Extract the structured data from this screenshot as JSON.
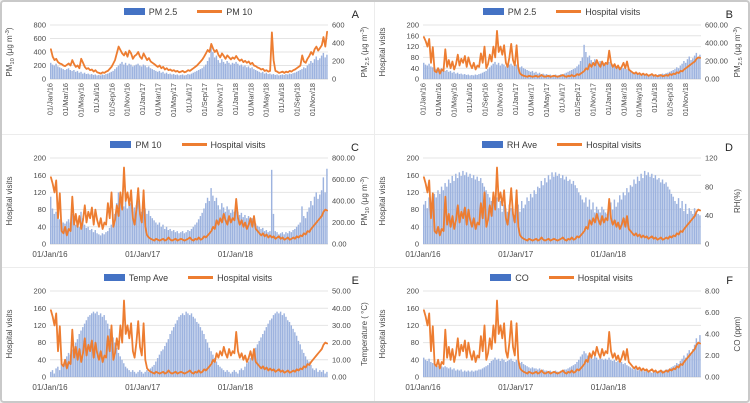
{
  "figure": {
    "background": "#ffffff",
    "border_color": "#C9C9C9",
    "divider_color": "#ECECEC"
  },
  "chart_data": {
    "type": "combo",
    "description": "Six combo bar+line time-series panels A-F, daily data 01/Jan/16 to Dec/18 (values stored at weekly resolution, 156 points)",
    "x_axis": {
      "start": "01/Jan/16",
      "end": "Dec/18",
      "points": 156,
      "monthly_labels": [
        "01/Jan/16",
        "01/Mar/16",
        "01/May/16",
        "01/Jul/16",
        "01/Sep/16",
        "01/Nov/16",
        "01/Jan/17",
        "01/Mar/17",
        "01/May/17",
        "01/Jul/17",
        "01/Sep/17",
        "01/Nov/17",
        "01/Jan/18",
        "01/Mar/18",
        "01/May/18",
        "01/Jul/18",
        "01/Sep/18",
        "01/Nov/18"
      ],
      "yearly_labels": [
        "01/Jan/16",
        "01/Jan/17",
        "01/Jan/18"
      ]
    },
    "colors": {
      "bar_fill": "#9DB3DF",
      "bar_legend": "#4472C4",
      "line": "#ED7D31",
      "grid": "#E4E4E4",
      "axis_line": "#D6D6D6",
      "axis_text": "#4A4A4A"
    },
    "series_pool": {
      "hospital_visits": [
        155,
        140,
        120,
        148,
        60,
        118,
        30,
        25,
        40,
        20,
        35,
        30,
        110,
        45,
        70,
        40,
        65,
        35,
        55,
        90,
        50,
        75,
        60,
        85,
        45,
        80,
        55,
        40,
        60,
        35,
        50,
        45,
        95,
        60,
        120,
        40,
        55,
        90,
        65,
        120,
        80,
        178,
        100,
        120,
        90,
        125,
        60,
        45,
        80,
        130,
        70,
        50,
        125,
        40,
        20,
        15,
        12,
        10,
        8,
        12,
        10,
        8,
        10,
        12,
        8,
        10,
        15,
        10,
        8,
        10,
        12,
        8,
        10,
        12,
        10,
        8,
        10,
        12,
        15,
        10,
        8,
        12,
        10,
        15,
        10,
        12,
        18,
        15,
        20,
        25,
        30,
        40,
        35,
        55,
        45,
        60,
        50,
        70,
        55,
        45,
        65,
        50,
        60,
        55,
        105,
        60,
        45,
        55,
        40,
        50,
        35,
        45,
        60,
        40,
        65,
        35,
        30,
        25,
        20,
        25,
        18,
        22,
        15,
        20,
        15,
        18,
        12,
        15,
        18,
        12,
        15,
        10,
        12,
        15,
        10,
        12,
        15,
        12,
        18,
        15,
        20,
        18,
        25,
        22,
        30,
        28,
        35,
        40,
        45,
        50,
        55,
        60,
        65,
        75,
        80,
        78
      ],
      "pm25": [
        180,
        160,
        150,
        170,
        140,
        130,
        120,
        110,
        100,
        110,
        120,
        100,
        90,
        100,
        80,
        90,
        70,
        80,
        60,
        70,
        55,
        60,
        50,
        55,
        45,
        50,
        40,
        45,
        40,
        50,
        45,
        55,
        60,
        70,
        80,
        90,
        110,
        130,
        150,
        170,
        190,
        160,
        180,
        150,
        170,
        160,
        140,
        150,
        160,
        170,
        150,
        140,
        160,
        150,
        130,
        140,
        120,
        110,
        100,
        90,
        80,
        90,
        70,
        80,
        60,
        70,
        55,
        60,
        50,
        55,
        45,
        50,
        40,
        45,
        50,
        40,
        45,
        55,
        50,
        60,
        70,
        80,
        90,
        100,
        110,
        120,
        140,
        160,
        200,
        240,
        380,
        300,
        240,
        260,
        210,
        180,
        220,
        190,
        170,
        200,
        180,
        160,
        180,
        170,
        190,
        170,
        150,
        160,
        140,
        150,
        130,
        140,
        120,
        130,
        110,
        100,
        90,
        80,
        70,
        80,
        60,
        70,
        55,
        60,
        50,
        55,
        45,
        50,
        40,
        45,
        50,
        45,
        55,
        50,
        60,
        55,
        65,
        70,
        80,
        90,
        100,
        110,
        130,
        120,
        150,
        170,
        200,
        180,
        220,
        250,
        210,
        230,
        260,
        290,
        240,
        270
      ],
      "pm10": [
        440,
        330,
        280,
        300,
        250,
        230,
        220,
        200,
        190,
        210,
        230,
        200,
        280,
        220,
        180,
        200,
        160,
        300,
        240,
        180,
        150,
        160,
        130,
        140,
        110,
        130,
        100,
        90,
        80,
        100,
        90,
        110,
        120,
        150,
        180,
        230,
        280,
        380,
        480,
        430,
        380,
        350,
        400,
        330,
        420,
        380,
        300,
        340,
        360,
        400,
        330,
        300,
        380,
        330,
        280,
        310,
        260,
        240,
        220,
        200,
        180,
        200,
        160,
        180,
        140,
        160,
        130,
        140,
        120,
        130,
        110,
        120,
        100,
        110,
        120,
        100,
        110,
        130,
        120,
        140,
        160,
        180,
        200,
        230,
        260,
        290,
        330,
        380,
        430,
        400,
        520,
        450,
        400,
        430,
        360,
        320,
        380,
        340,
        300,
        350,
        320,
        290,
        320,
        300,
        340,
        300,
        270,
        290,
        250,
        270,
        240,
        260,
        220,
        240,
        200,
        190,
        170,
        160,
        140,
        150,
        120,
        130,
        110,
        120,
        690,
        280,
        120,
        110,
        90,
        100,
        110,
        90,
        110,
        100,
        120,
        110,
        130,
        140,
        160,
        180,
        200,
        350,
        260,
        240,
        300,
        340,
        400,
        360,
        440,
        480,
        420,
        460,
        500,
        620,
        480,
        700
      ],
      "rh_ave": [
        55,
        60,
        50,
        65,
        55,
        60,
        70,
        65,
        75,
        70,
        80,
        75,
        85,
        80,
        90,
        85,
        95,
        88,
        98,
        92,
        100,
        95,
        102,
        96,
        100,
        94,
        98,
        92,
        96,
        90,
        94,
        88,
        92,
        85,
        80,
        75,
        70,
        65,
        60,
        70,
        55,
        65,
        50,
        60,
        45,
        55,
        50,
        45,
        55,
        50,
        45,
        40,
        50,
        55,
        45,
        60,
        50,
        55,
        65,
        60,
        70,
        65,
        75,
        70,
        80,
        78,
        88,
        82,
        92,
        86,
        96,
        90,
        100,
        94,
        100,
        95,
        98,
        92,
        96,
        90,
        94,
        88,
        90,
        84,
        88,
        82,
        78,
        72,
        68,
        62,
        58,
        65,
        52,
        62,
        48,
        58,
        44,
        52,
        48,
        44,
        52,
        48,
        44,
        42,
        52,
        58,
        48,
        62,
        52,
        58,
        68,
        62,
        72,
        68,
        78,
        72,
        82,
        80,
        90,
        84,
        94,
        88,
        98,
        92,
        102,
        96,
        100,
        94,
        98,
        92,
        96,
        90,
        92,
        86,
        90,
        84,
        86,
        80,
        76,
        70,
        66,
        60,
        56,
        64,
        50,
        60,
        46,
        56,
        42,
        50,
        46,
        42,
        50,
        46,
        42,
        40
      ],
      "temp_ave": [
        3,
        4,
        2,
        5,
        6,
        4,
        8,
        7,
        10,
        12,
        14,
        13,
        16,
        18,
        20,
        22,
        25,
        27,
        29,
        31,
        33,
        35,
        36,
        37,
        38,
        37,
        38,
        36,
        37,
        35,
        36,
        33,
        31,
        28,
        26,
        23,
        20,
        17,
        14,
        12,
        10,
        8,
        6,
        5,
        4,
        3,
        4,
        3,
        2,
        3,
        4,
        3,
        2,
        3,
        4,
        3,
        5,
        6,
        7,
        9,
        11,
        13,
        15,
        16,
        18,
        20,
        22,
        25,
        27,
        29,
        31,
        33,
        35,
        36,
        37,
        36,
        38,
        37,
        36,
        37,
        35,
        34,
        32,
        31,
        29,
        27,
        25,
        22,
        20,
        17,
        15,
        13,
        11,
        9,
        7,
        6,
        5,
        4,
        3,
        4,
        3,
        2,
        3,
        4,
        3,
        2,
        4,
        5,
        4,
        6,
        8,
        9,
        11,
        12,
        15,
        17,
        19,
        21,
        23,
        25,
        27,
        29,
        31,
        33,
        34,
        36,
        37,
        38,
        37,
        38,
        36,
        37,
        35,
        33,
        32,
        30,
        28,
        26,
        24,
        21,
        19,
        16,
        14,
        12,
        10,
        9,
        7,
        5,
        4,
        5,
        3,
        4,
        3,
        4,
        2,
        3
      ],
      "co": [
        1.8,
        1.6,
        1.5,
        1.7,
        1.4,
        1.3,
        1.2,
        1.1,
        1.0,
        1.1,
        1.0,
        0.9,
        1.0,
        0.9,
        0.8,
        0.9,
        0.7,
        0.8,
        0.6,
        0.7,
        0.6,
        0.7,
        0.5,
        0.6,
        0.5,
        0.6,
        0.5,
        0.6,
        0.5,
        0.6,
        0.6,
        0.7,
        0.7,
        0.8,
        0.9,
        1.0,
        1.1,
        1.3,
        1.5,
        1.6,
        1.8,
        1.6,
        1.7,
        1.5,
        1.7,
        1.6,
        1.4,
        1.5,
        1.6,
        1.7,
        1.5,
        1.4,
        1.6,
        1.5,
        1.3,
        1.4,
        1.2,
        1.1,
        1.0,
        0.9,
        0.8,
        0.9,
        0.8,
        0.8,
        0.7,
        0.8,
        0.6,
        0.7,
        0.6,
        0.6,
        0.5,
        0.6,
        0.5,
        0.5,
        0.6,
        0.5,
        0.5,
        0.6,
        0.6,
        0.7,
        0.7,
        0.8,
        0.9,
        1.0,
        1.1,
        1.2,
        1.4,
        1.6,
        1.9,
        2.1,
        2.4,
        2.2,
        2.0,
        2.2,
        1.9,
        1.7,
        2.0,
        1.8,
        1.6,
        1.9,
        1.7,
        1.6,
        1.7,
        1.6,
        1.8,
        1.6,
        1.5,
        1.6,
        1.4,
        1.5,
        1.3,
        1.4,
        1.2,
        1.3,
        1.1,
        1.0,
        0.9,
        0.8,
        0.7,
        0.8,
        0.6,
        0.7,
        0.6,
        0.6,
        0.5,
        0.6,
        0.5,
        0.5,
        0.4,
        0.5,
        0.5,
        0.5,
        0.6,
        0.5,
        0.6,
        0.6,
        0.7,
        0.7,
        0.8,
        0.9,
        1.0,
        1.1,
        1.3,
        1.2,
        1.5,
        1.7,
        2.0,
        1.8,
        2.2,
        2.5,
        2.2,
        2.6,
        3.0,
        3.6,
        3.2,
        3.9
      ]
    },
    "panels": [
      {
        "letter": "A",
        "x_mode": "monthly",
        "legend": [
          {
            "label": "PM 2.5",
            "type": "bar"
          },
          {
            "label": "PM 10",
            "type": "line"
          }
        ],
        "bar": {
          "series": "pm25",
          "axis": "right"
        },
        "line": {
          "series": "pm10",
          "axis": "left"
        },
        "left_axis": {
          "label": "PM_{10} (µg m^{-3})",
          "max": 800,
          "ticks": [
            "0",
            "200",
            "400",
            "600",
            "800"
          ]
        },
        "right_axis": {
          "label": "PM_{2.5} (µg m^{-3})",
          "max": 600,
          "ticks": [
            "0",
            "200",
            "400",
            "600"
          ]
        }
      },
      {
        "letter": "B",
        "x_mode": "monthly",
        "legend": [
          {
            "label": "PM 2.5",
            "type": "bar"
          },
          {
            "label": "Hospital visits",
            "type": "line"
          }
        ],
        "bar": {
          "series": "pm25",
          "axis": "right"
        },
        "line": {
          "series": "hospital_visits",
          "axis": "left"
        },
        "left_axis": {
          "label": "Hospital visits",
          "max": 200,
          "ticks": [
            "0",
            "40",
            "80",
            "120",
            "160",
            "200"
          ]
        },
        "right_axis": {
          "label": "PM_{2.5} (µg m^{-3})",
          "max": 600,
          "ticks": [
            "0.00",
            "200.00",
            "400.00",
            "600.00"
          ]
        }
      },
      {
        "letter": "C",
        "x_mode": "yearly",
        "legend": [
          {
            "label": "PM 10",
            "type": "bar"
          },
          {
            "label": "Hospital visits",
            "type": "line"
          }
        ],
        "bar": {
          "series": "pm10",
          "axis": "right"
        },
        "line": {
          "series": "hospital_visits",
          "axis": "left"
        },
        "left_axis": {
          "label": "Hospital visits",
          "max": 200,
          "ticks": [
            "0",
            "40",
            "80",
            "120",
            "160",
            "200"
          ]
        },
        "right_axis": {
          "label": "PM_{10} (µg m^{-3})",
          "max": 800,
          "ticks": [
            "0.00",
            "200.00",
            "400.00",
            "600.00",
            "800.00"
          ]
        }
      },
      {
        "letter": "D",
        "x_mode": "yearly",
        "legend": [
          {
            "label": "RH Ave",
            "type": "bar"
          },
          {
            "label": "Hospital visits",
            "type": "line"
          }
        ],
        "bar": {
          "series": "rh_ave",
          "axis": "right"
        },
        "line": {
          "series": "hospital_visits",
          "axis": "left"
        },
        "left_axis": {
          "label": "Hospital visits",
          "max": 200,
          "ticks": [
            "0",
            "40",
            "80",
            "120",
            "160",
            "200"
          ]
        },
        "right_axis": {
          "label": "RH(%)",
          "max": 120,
          "ticks": [
            "0",
            "40",
            "80",
            "120"
          ]
        }
      },
      {
        "letter": "E",
        "x_mode": "yearly",
        "legend": [
          {
            "label": "Temp Ave",
            "type": "bar"
          },
          {
            "label": "Hospital visits",
            "type": "line"
          }
        ],
        "bar": {
          "series": "temp_ave",
          "axis": "right"
        },
        "line": {
          "series": "hospital_visits",
          "axis": "left"
        },
        "left_axis": {
          "label": "Hospital visits",
          "max": 200,
          "ticks": [
            "0",
            "40",
            "80",
            "120",
            "160",
            "200"
          ]
        },
        "right_axis": {
          "label": "Temperature ( °C)",
          "max": 50,
          "ticks": [
            "0.00",
            "10.00",
            "20.00",
            "30.00",
            "40.00",
            "50.00"
          ]
        }
      },
      {
        "letter": "F",
        "x_mode": "yearly",
        "legend": [
          {
            "label": "CO",
            "type": "bar"
          },
          {
            "label": "Hospital visits",
            "type": "line"
          }
        ],
        "bar": {
          "series": "co",
          "axis": "right"
        },
        "line": {
          "series": "hospital_visits",
          "axis": "left"
        },
        "left_axis": {
          "label": "Hospital visits",
          "max": 200,
          "ticks": [
            "0",
            "40",
            "80",
            "120",
            "160",
            "200"
          ]
        },
        "right_axis": {
          "label": "CO (ppm)",
          "max": 8,
          "ticks": [
            "0.00",
            "2.00",
            "4.00",
            "6.00",
            "8.00"
          ]
        }
      }
    ]
  }
}
